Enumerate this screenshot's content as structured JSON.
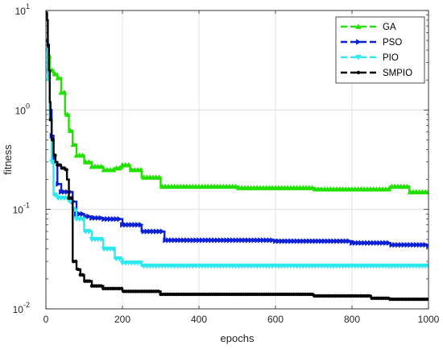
{
  "chart_data": {
    "type": "line",
    "title": "",
    "xlabel": "epochs",
    "ylabel": "fitness",
    "xlim": [
      0,
      1000
    ],
    "ylim": [
      0.01,
      10
    ],
    "yscale": "log",
    "grid": true,
    "legend_position": "top-right",
    "x_ticks": [
      {
        "value": 0,
        "label": "0"
      },
      {
        "value": 200,
        "label": "200"
      },
      {
        "value": 400,
        "label": "400"
      },
      {
        "value": 600,
        "label": "600"
      },
      {
        "value": 800,
        "label": "800"
      },
      {
        "value": 1000,
        "label": "1000"
      }
    ],
    "y_ticks": [
      {
        "value": 0.01,
        "base": "10",
        "exp": "-2"
      },
      {
        "value": 0.1,
        "base": "10",
        "exp": "-1"
      },
      {
        "value": 1,
        "base": "10",
        "exp": "0"
      },
      {
        "value": 10,
        "base": "10",
        "exp": "1"
      }
    ],
    "series": [
      {
        "name": "GA",
        "color": "#22e000",
        "marker": "triangle-up",
        "x": [
          0,
          5,
          10,
          20,
          30,
          40,
          50,
          60,
          70,
          80,
          100,
          120,
          150,
          180,
          200,
          220,
          250,
          300,
          400,
          500,
          600,
          700,
          800,
          900,
          950,
          1000
        ],
        "y": [
          5,
          3.5,
          2.5,
          2.3,
          2.1,
          1.5,
          0.9,
          0.62,
          0.45,
          0.35,
          0.3,
          0.27,
          0.25,
          0.26,
          0.28,
          0.25,
          0.21,
          0.17,
          0.17,
          0.165,
          0.165,
          0.16,
          0.16,
          0.17,
          0.15,
          0.15
        ]
      },
      {
        "name": "PSO",
        "color": "#0a1fd6",
        "marker": "triangle-right",
        "x": [
          0,
          5,
          10,
          15,
          20,
          30,
          40,
          50,
          60,
          70,
          80,
          100,
          120,
          150,
          200,
          250,
          300,
          310,
          400,
          500,
          600,
          700,
          800,
          900,
          1000
        ],
        "y": [
          5,
          2.5,
          1.0,
          0.55,
          0.3,
          0.18,
          0.15,
          0.15,
          0.15,
          0.12,
          0.09,
          0.085,
          0.082,
          0.08,
          0.07,
          0.06,
          0.06,
          0.049,
          0.049,
          0.049,
          0.048,
          0.048,
          0.046,
          0.044,
          0.043
        ]
      },
      {
        "name": "PIO",
        "color": "#2ee8f0",
        "marker": "triangle-down",
        "x": [
          0,
          5,
          10,
          15,
          20,
          30,
          50,
          60,
          70,
          80,
          100,
          120,
          150,
          180,
          200,
          250,
          300,
          400,
          600,
          800,
          1000
        ],
        "y": [
          4,
          2.0,
          0.8,
          0.3,
          0.14,
          0.13,
          0.13,
          0.12,
          0.1,
          0.08,
          0.06,
          0.05,
          0.04,
          0.032,
          0.029,
          0.027,
          0.027,
          0.027,
          0.027,
          0.027,
          0.027
        ]
      },
      {
        "name": "SMPIO",
        "color": "#000000",
        "marker": "dot",
        "x": [
          0,
          3,
          5,
          8,
          10,
          12,
          15,
          20,
          25,
          30,
          40,
          50,
          55,
          60,
          70,
          80,
          90,
          100,
          120,
          150,
          200,
          250,
          300,
          500,
          700,
          800,
          850,
          900,
          1000
        ],
        "y": [
          9.5,
          8,
          4.5,
          2.5,
          1.2,
          0.8,
          0.5,
          0.35,
          0.3,
          0.28,
          0.26,
          0.25,
          0.2,
          0.13,
          0.03,
          0.025,
          0.022,
          0.019,
          0.017,
          0.016,
          0.015,
          0.015,
          0.014,
          0.014,
          0.0135,
          0.0135,
          0.0128,
          0.0125,
          0.0125
        ]
      }
    ]
  }
}
